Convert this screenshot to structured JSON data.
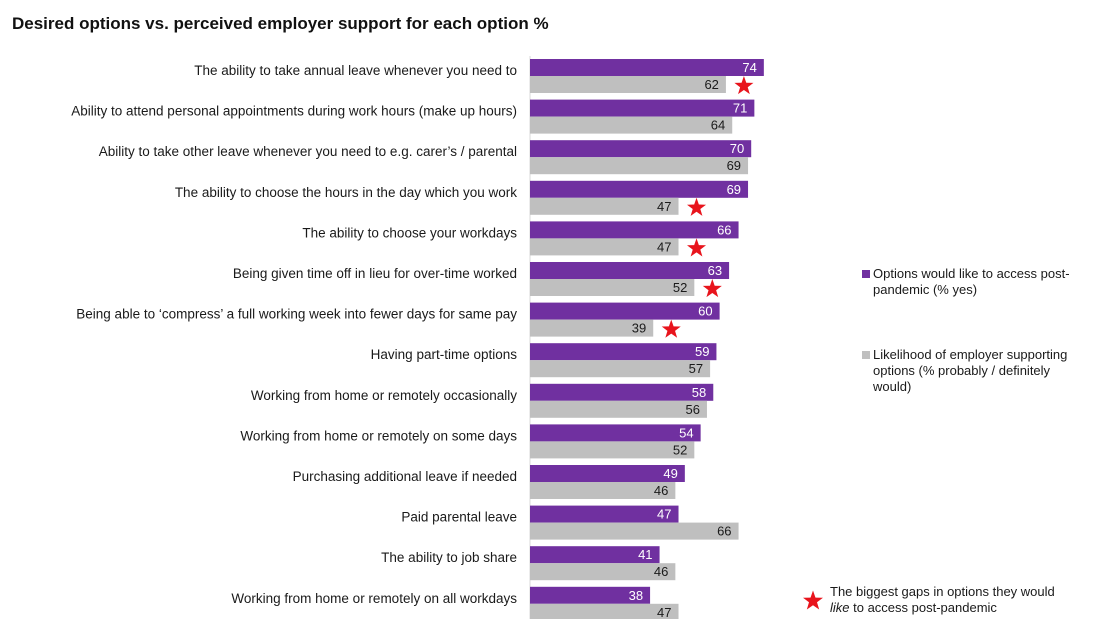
{
  "chart_data": {
    "type": "bar",
    "orientation": "horizontal",
    "title": "Desired options vs. perceived employer support for each option %",
    "categories": [
      "The ability to take annual leave whenever you need to",
      "Ability to attend personal appointments during work hours (make up hours)",
      "Ability to take other leave whenever you need to e.g. carer’s / parental",
      "The ability to choose the hours in the day which you work",
      "The ability to choose your workdays",
      "Being given time off in lieu for over-time worked",
      "Being able to ‘compress’ a full working week into fewer days for same pay",
      "Having part-time options",
      "Working from home or remotely occasionally",
      "Working from home or remotely on some days",
      "Purchasing additional leave if needed",
      "Paid parental leave",
      "The ability to job share",
      "Working from home or remotely on all workdays"
    ],
    "series": [
      {
        "name": "Options would like to access post-pandemic (% yes)",
        "color": "#7030a0",
        "values": [
          74,
          71,
          70,
          69,
          66,
          63,
          60,
          59,
          58,
          54,
          49,
          47,
          41,
          38
        ]
      },
      {
        "name": "Likelihood of employer supporting options (% probably / definitely would)",
        "color": "#bfbfbf",
        "values": [
          62,
          64,
          69,
          47,
          47,
          52,
          39,
          57,
          56,
          52,
          46,
          66,
          46,
          47
        ]
      }
    ],
    "biggest_gap_flags": [
      true,
      false,
      false,
      true,
      true,
      true,
      true,
      false,
      false,
      false,
      false,
      false,
      false,
      false
    ],
    "star_color": "#e8141c",
    "xlim": [
      0,
      100
    ],
    "grid": false,
    "legend_position": "right",
    "legend": {
      "primary": "Options would like to access post-pandemic (% yes)",
      "secondary": "Likelihood of employer supporting options (% probably / definitely would)",
      "star_line1": "The biggest gaps in options they would",
      "star_line2_italic": "like",
      "star_line2_rest": " to access post-pandemic"
    }
  }
}
